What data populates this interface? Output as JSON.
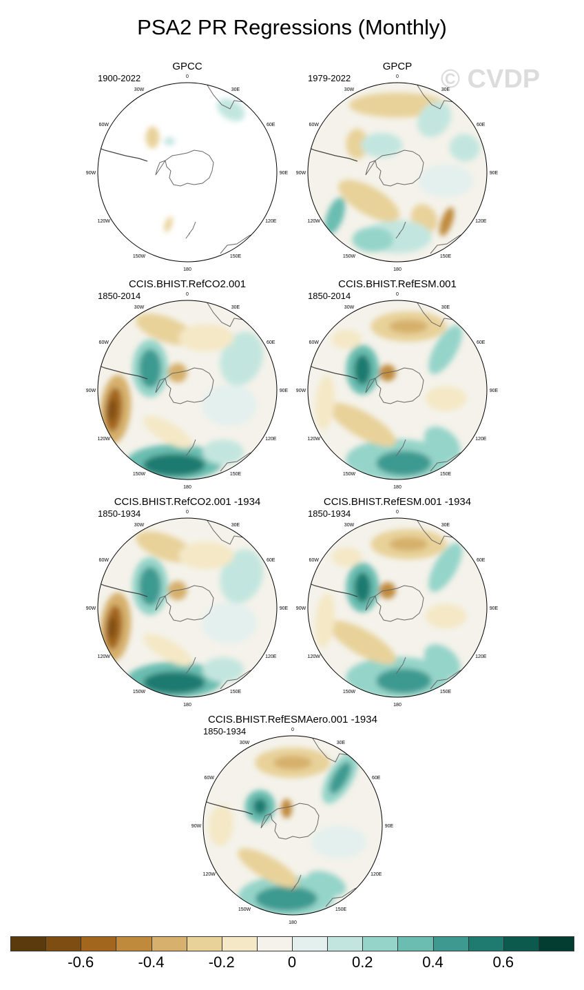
{
  "title": "PSA2 PR Regressions (Monthly)",
  "watermark": "© CVDP",
  "lon_labels": [
    "0",
    "30E",
    "60E",
    "90E",
    "120E",
    "150E",
    "180",
    "150W",
    "120W",
    "90W",
    "60W",
    "30W"
  ],
  "panels": [
    {
      "id": "gpcc",
      "title": "GPCC",
      "period": "1900-2022",
      "pattern": "obs_sparse"
    },
    {
      "id": "gpcp",
      "title": "GPCP",
      "period": "1979-2022",
      "pattern": "obs"
    },
    {
      "id": "refco2",
      "title": "CCIS.BHIST.RefCO2.001",
      "period": "1850-2014",
      "pattern": "model_a"
    },
    {
      "id": "refesm",
      "title": "CCIS.BHIST.RefESM.001",
      "period": "1850-2014",
      "pattern": "model_b"
    },
    {
      "id": "refco2_1934",
      "title": "CCIS.BHIST.RefCO2.001 -1934",
      "period": "1850-1934",
      "pattern": "model_a"
    },
    {
      "id": "refesm_1934",
      "title": "CCIS.BHIST.RefESM.001 -1934",
      "period": "1850-1934",
      "pattern": "model_b"
    },
    {
      "id": "refesmaero_1934",
      "title": "CCIS.BHIST.RefESMAero.001 -1934",
      "period": "1850-1934",
      "pattern": "model_c"
    }
  ],
  "colorbar": {
    "colors": [
      "#5b3a0d",
      "#7e4d12",
      "#a3661d",
      "#c08a3d",
      "#d6b06c",
      "#e8d29a",
      "#f4e8c6",
      "#f4f2ea",
      "#e4f0ee",
      "#c2e6df",
      "#95d4c9",
      "#6bbdb1",
      "#3e9a90",
      "#1f7a70",
      "#0c5a4e",
      "#033d32"
    ],
    "labels": [
      {
        "text": "-0.6",
        "index": 1
      },
      {
        "text": "-0.4",
        "index": 3
      },
      {
        "text": "-0.2",
        "index": 5
      },
      {
        "text": "0",
        "index": 7
      },
      {
        "text": "0.2",
        "index": 9
      },
      {
        "text": "0.4",
        "index": 11
      },
      {
        "text": "0.6",
        "index": 13
      }
    ]
  }
}
